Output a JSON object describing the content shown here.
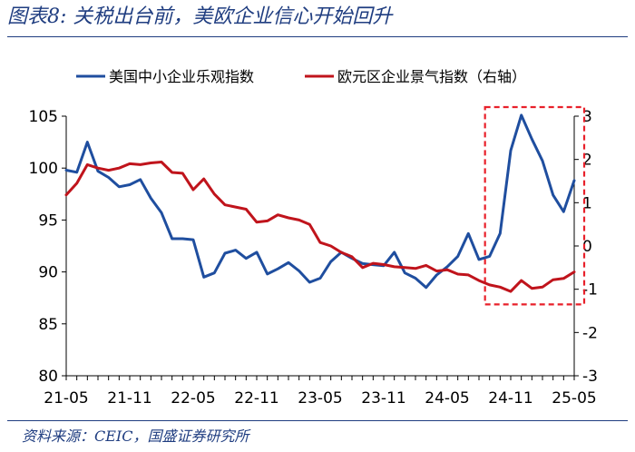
{
  "figure": {
    "title": "图表8:  关税出台前，美欧企业信心开始回升",
    "source": "资料来源：CEIC，国盛证券研究所"
  },
  "colors": {
    "series1": "#1f4e9f",
    "series2": "#c0141c",
    "highlight": "#e8202a",
    "rule": "#1f3d80"
  },
  "chart_data": {
    "type": "line",
    "x_tick_labels": [
      "21-05",
      "21-11",
      "22-05",
      "22-11",
      "23-05",
      "23-11",
      "24-05",
      "24-11",
      "25-05"
    ],
    "x": [
      "21-05",
      "21-06",
      "21-07",
      "21-08",
      "21-09",
      "21-10",
      "21-11",
      "21-12",
      "22-01",
      "22-02",
      "22-03",
      "22-04",
      "22-05",
      "22-06",
      "22-07",
      "22-08",
      "22-09",
      "22-10",
      "22-11",
      "22-12",
      "23-01",
      "23-02",
      "23-03",
      "23-04",
      "23-05",
      "23-06",
      "23-07",
      "23-08",
      "23-09",
      "23-10",
      "23-11",
      "23-12",
      "24-01",
      "24-02",
      "24-03",
      "24-04",
      "24-05",
      "24-06",
      "24-07",
      "24-08",
      "24-09",
      "24-10",
      "24-11",
      "24-12",
      "25-01",
      "25-02",
      "25-03",
      "25-04",
      "25-05"
    ],
    "y_left": {
      "min": 80,
      "max": 105,
      "ticks": [
        80,
        85,
        90,
        95,
        100,
        105
      ]
    },
    "y_right": {
      "min": -3,
      "max": 3,
      "ticks": [
        -3,
        -2,
        -1,
        0,
        1,
        2,
        3
      ]
    },
    "legend_position": "top",
    "highlight_box": {
      "from": "24-09",
      "to": "25-05",
      "style": "dashed"
    },
    "series": [
      {
        "name": "美国中小企业乐观指数",
        "axis": "left",
        "values": [
          99.8,
          99.6,
          102.5,
          99.7,
          99.1,
          98.2,
          98.4,
          98.9,
          97.1,
          95.7,
          93.2,
          93.2,
          93.1,
          89.5,
          89.9,
          91.8,
          92.1,
          91.3,
          91.9,
          89.8,
          90.3,
          90.9,
          90.1,
          89.0,
          89.4,
          91.0,
          91.9,
          91.3,
          90.8,
          90.7,
          90.6,
          91.9,
          89.9,
          89.4,
          88.5,
          89.7,
          90.5,
          91.5,
          93.7,
          91.2,
          91.5,
          93.7,
          101.7,
          105.1,
          102.8,
          100.7,
          97.4,
          95.8,
          98.8
        ]
      },
      {
        "name": "欧元区企业景气指数（右轴）",
        "axis": "right",
        "values": [
          1.18,
          1.45,
          1.88,
          1.8,
          1.75,
          1.8,
          1.9,
          1.88,
          1.92,
          1.94,
          1.7,
          1.68,
          1.3,
          1.55,
          1.2,
          0.95,
          0.9,
          0.85,
          0.55,
          0.58,
          0.72,
          0.65,
          0.6,
          0.5,
          0.08,
          0.0,
          -0.15,
          -0.25,
          -0.5,
          -0.4,
          -0.43,
          -0.48,
          -0.5,
          -0.52,
          -0.45,
          -0.58,
          -0.55,
          -0.65,
          -0.67,
          -0.8,
          -0.9,
          -0.95,
          -1.05,
          -0.8,
          -0.98,
          -0.95,
          -0.78,
          -0.75,
          -0.6
        ]
      }
    ]
  }
}
